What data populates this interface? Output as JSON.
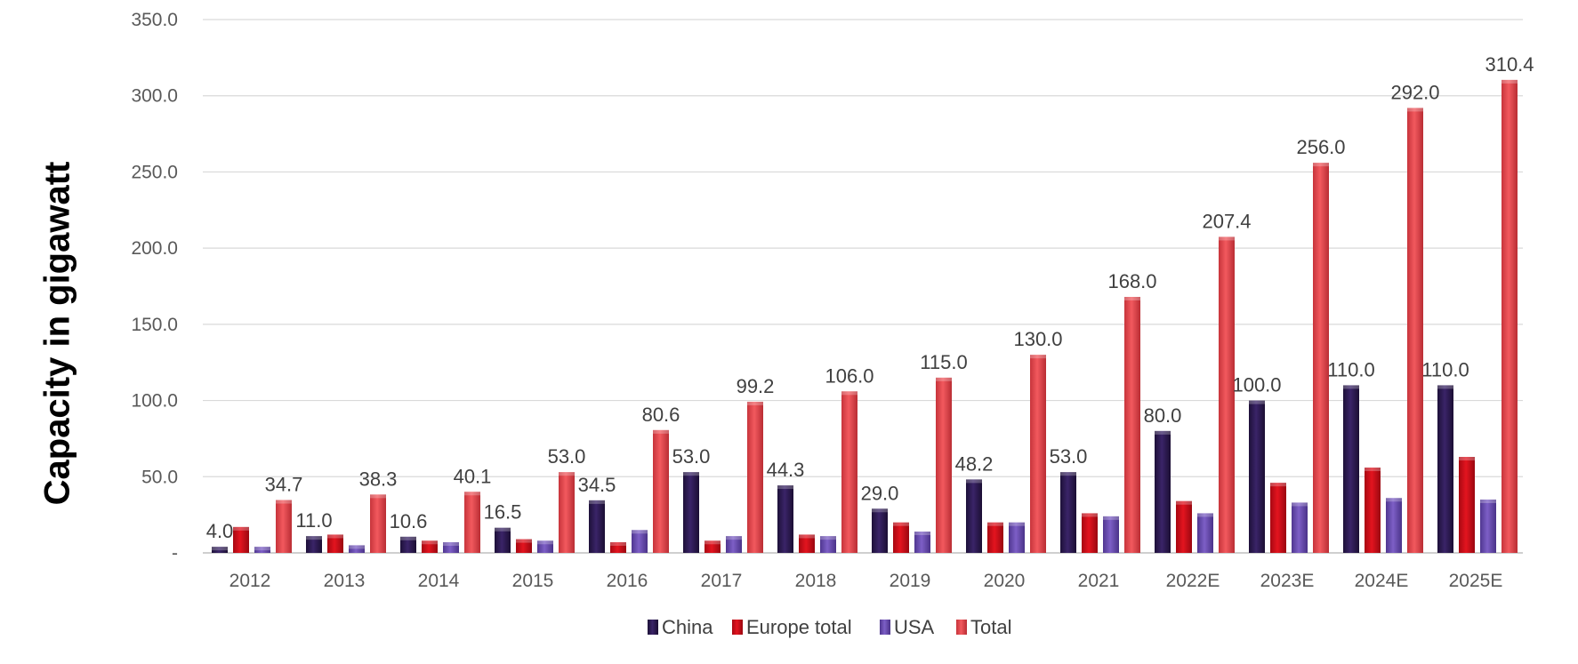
{
  "chart_data": {
    "type": "bar",
    "ylabel": "Capacity in gigawatt",
    "xlabel": "",
    "title": "",
    "ylim": [
      0,
      350
    ],
    "yticks": [
      "-",
      "50.0",
      "100.0",
      "150.0",
      "200.0",
      "250.0",
      "300.0",
      "350.0"
    ],
    "categories": [
      "2012",
      "2013",
      "2014",
      "2015",
      "2016",
      "2017",
      "2018",
      "2019",
      "2020",
      "2021",
      "2022E",
      "2023E",
      "2024E",
      "2025E"
    ],
    "series": [
      {
        "name": "China",
        "color": "#2d1a52",
        "values": [
          4.0,
          11.0,
          10.6,
          16.5,
          34.5,
          53.0,
          44.3,
          29.0,
          48.2,
          53.0,
          80.0,
          100.0,
          110.0,
          110.0
        ],
        "labels": [
          "4.0",
          "11.0",
          "10.6",
          "16.5",
          "34.5",
          "53.0",
          "44.3",
          "29.0",
          "48.2",
          "53.0",
          "80.0",
          "100.0",
          "110.0",
          "110.0"
        ]
      },
      {
        "name": "Europe total",
        "color": "#d0101c",
        "values": [
          17,
          12,
          8,
          9,
          7,
          8,
          12,
          20,
          20,
          26,
          34,
          46,
          56,
          63
        ]
      },
      {
        "name": "USA",
        "color": "#6c4fb5",
        "values": [
          4,
          5,
          7,
          8,
          15,
          11,
          11,
          14,
          20,
          24,
          26,
          33,
          36,
          35
        ]
      },
      {
        "name": "Total",
        "color": "#e84a50",
        "values": [
          34.7,
          38.3,
          40.1,
          53.0,
          80.6,
          99.2,
          106.0,
          115.0,
          130.0,
          168.0,
          207.4,
          256.0,
          292.0,
          310.4
        ],
        "labels": [
          "34.7",
          "38.3",
          "40.1",
          "53.0",
          "80.6",
          "99.2",
          "106.0",
          "115.0",
          "130.0",
          "168.0",
          "207.4",
          "256.0",
          "292.0",
          "310.4"
        ]
      }
    ],
    "grid": true,
    "legend_position": "bottom-center"
  }
}
